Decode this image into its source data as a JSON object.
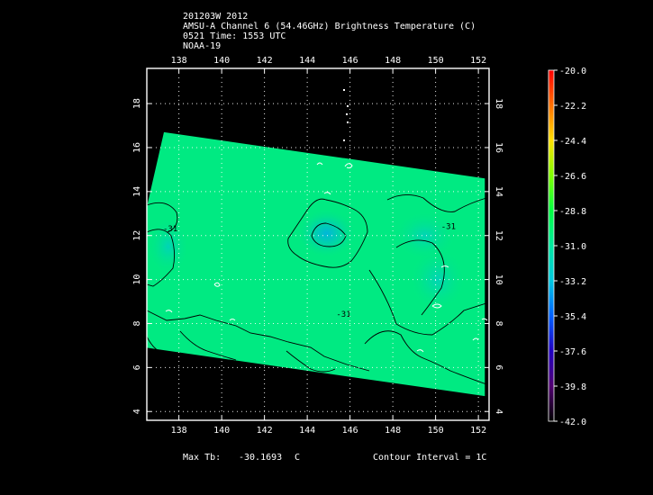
{
  "header": {
    "line1": "201203W 2012",
    "line2": "AMSU-A Channel 6 (54.46GHz) Brightness Temperature (C)",
    "line3": "0521 Time: 1553 UTC",
    "line4": "NOAA-19"
  },
  "footer": {
    "max_tb_label": "Max Tb:",
    "max_tb_value": "-30.1693",
    "max_tb_unit": "C",
    "contour_interval": "Contour Interval = 1C"
  },
  "chart_data": {
    "type": "heatmap",
    "title": "AMSU-A Channel 6 (54.46GHz) Brightness Temperature (C)",
    "xlim": [
      136.5,
      152.5
    ],
    "ylim": [
      3.6,
      19.6
    ],
    "x_ticks": [
      138,
      140,
      142,
      144,
      146,
      148,
      150,
      152
    ],
    "y_ticks": [
      4,
      6,
      8,
      10,
      12,
      14,
      16,
      18
    ],
    "grid": true,
    "colorbar": {
      "range": [
        -42.0,
        -20.0
      ],
      "ticks": [
        "-20.0",
        "-22.2",
        "-24.4",
        "-26.6",
        "-28.8",
        "-31.0",
        "-33.2",
        "-35.4",
        "-37.6",
        "-39.8",
        "-42.0"
      ]
    },
    "swath_corners": [
      [
        137.3,
        16.7
      ],
      [
        152.3,
        14.6
      ],
      [
        152.3,
        4.7
      ],
      [
        136.5,
        6.9
      ],
      [
        136.5,
        13.3
      ]
    ],
    "contour_label": "-31",
    "contour_label_positions": [
      [
        137.6,
        12.2
      ],
      [
        150.6,
        12.3
      ],
      [
        145.7,
        8.3
      ]
    ],
    "cold_spots": [
      {
        "lon": 144.9,
        "lat": 12.1,
        "tb": -33.0
      },
      {
        "lon": 150.1,
        "lat": 10.0,
        "tb": -32.0
      },
      {
        "lon": 149.5,
        "lat": 12.0,
        "tb": -31.3
      },
      {
        "lon": 137.5,
        "lat": 11.5,
        "tb": -30.9
      }
    ],
    "base_tb": -30.3
  },
  "colors": {
    "background": "#000000",
    "frame": "#ffffff",
    "contour": "#000000"
  }
}
